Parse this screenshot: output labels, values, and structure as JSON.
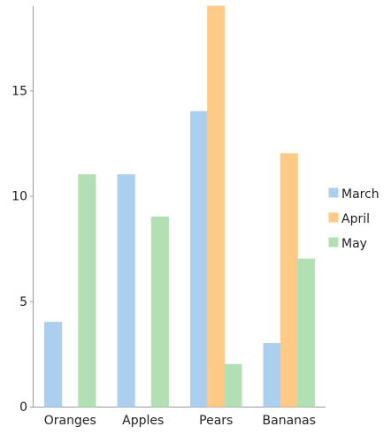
{
  "chart_data": {
    "type": "bar",
    "categories": [
      "Oranges",
      "Apples",
      "Pears",
      "Bananas"
    ],
    "series": [
      {
        "name": "March",
        "values": [
          4,
          11,
          14,
          3
        ],
        "color": "#aacfef"
      },
      {
        "name": "April",
        "values": [
          0,
          0,
          19,
          12
        ],
        "color": "#ffc986"
      },
      {
        "name": "May",
        "values": [
          11,
          9,
          2,
          7
        ],
        "color": "#b2dfb3"
      }
    ],
    "ylim": [
      0,
      19
    ],
    "yticks": [
      0,
      5,
      10,
      15
    ],
    "grid": false,
    "legend_position": "right"
  }
}
